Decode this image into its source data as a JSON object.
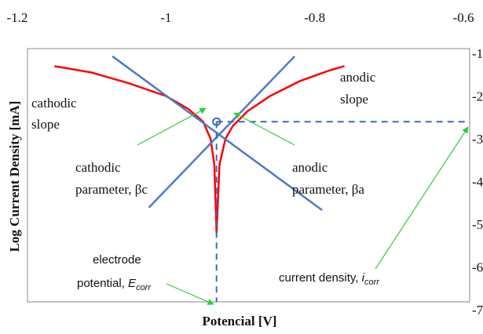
{
  "chart_data": {
    "type": "line",
    "xlabel": "Potencial [V]",
    "ylabel": "Log Current Density [mA]",
    "xlim": [
      -1.2,
      -0.6
    ],
    "xticks": [
      -1.2,
      -1,
      -0.8,
      -0.6
    ],
    "ylim": [
      -7,
      -1
    ],
    "yticks": [
      -1,
      -2,
      -3,
      -4,
      -5,
      -6,
      -7
    ],
    "lines": [
      {
        "color": "#ff0000",
        "dashed": false,
        "x": [
          -1.15,
          -1.1,
          -1.05,
          -1.0,
          -0.97,
          -0.95,
          -0.94,
          -0.935,
          -0.932,
          -0.928,
          -0.92,
          -0.91,
          -0.89,
          -0.86,
          -0.82,
          -0.78,
          -0.76
        ],
        "y": [
          -1.3,
          -1.45,
          -1.7,
          -2.0,
          -2.3,
          -2.6,
          -3.0,
          -3.6,
          -5.2,
          -3.6,
          -3.0,
          -2.7,
          -2.35,
          -2.0,
          -1.65,
          -1.4,
          -1.3
        ]
      },
      {
        "color": "#4a7cc4",
        "dashed": false,
        "x": [
          -1.072,
          -0.79
        ],
        "y": [
          -1.07,
          -4.67
        ]
      },
      {
        "color": "#4a7cc4",
        "dashed": false,
        "x": [
          -0.827,
          -1.023
        ],
        "y": [
          -1.07,
          -4.61
        ]
      },
      {
        "color": "#3a6cb8",
        "dashed": true,
        "x": [
          -0.932,
          -0.592
        ],
        "y": [
          -2.6,
          -2.6
        ]
      },
      {
        "color": "#3a6cb8",
        "dashed": true,
        "x": [
          -0.932,
          -0.932
        ],
        "y": [
          -2.6,
          -6.82
        ]
      }
    ],
    "point": {
      "x": -0.932,
      "y": -2.6,
      "color": "#3a6cb8"
    },
    "annotations": [
      [
        "cathodic",
        "slope"
      ],
      [
        "anodic",
        "slope"
      ],
      [
        "cathodic",
        "parameter, βc"
      ],
      [
        "anodic",
        "parameter, βa"
      ]
    ],
    "ecorr_label": {
      "line1": "electrode",
      "line2": "potential, ",
      "symbol": "E",
      "sub": "corr"
    },
    "icorr_label": {
      "text": "current density, ",
      "symbol": "i",
      "sub": "corr"
    }
  }
}
